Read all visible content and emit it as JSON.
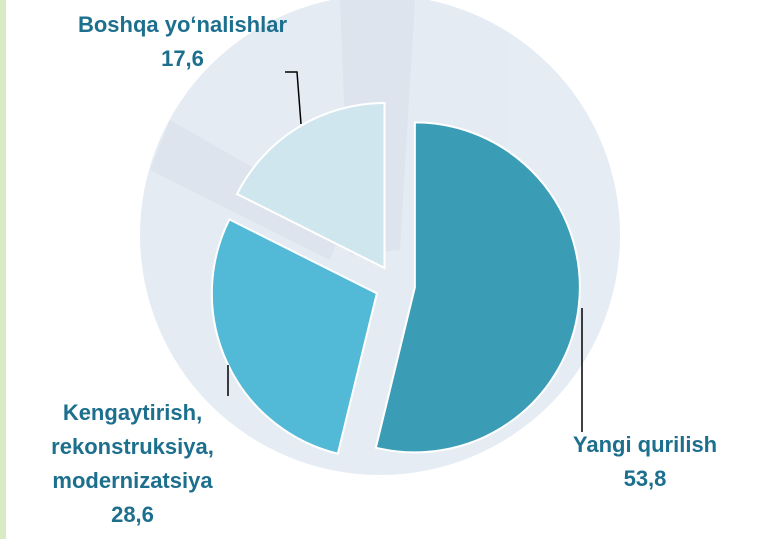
{
  "chart_data": {
    "type": "pie",
    "categories": [
      "Yangi qurilish",
      "Kengaytirish, rekonstruksiya, modernizatsiya",
      "Boshqa yo‘nalishlar"
    ],
    "values": [
      53.8,
      28.6,
      17.6
    ],
    "value_labels": [
      "53,8",
      "28,6",
      "17,6"
    ],
    "colors": [
      "#3b9cb6",
      "#52b9d6",
      "#cfe6ee"
    ]
  }
}
